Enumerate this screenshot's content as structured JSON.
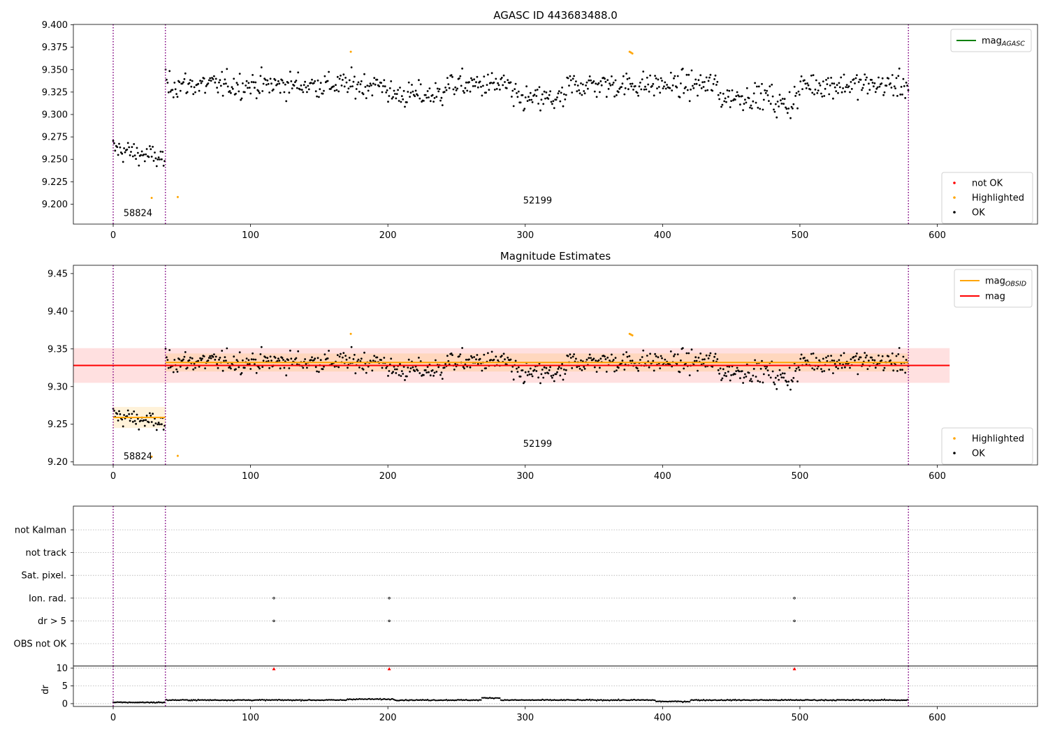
{
  "chart_data": [
    {
      "type": "scatter",
      "title": "AGASC ID 443683488.0",
      "xlabel": "",
      "ylabel": "",
      "xlim": [
        -29,
        673
      ],
      "ylim": [
        9.1778,
        9.4004
      ],
      "xticks": [
        0,
        100,
        200,
        300,
        400,
        500,
        600
      ],
      "yticks": [
        9.2,
        9.225,
        9.25,
        9.275,
        9.3,
        9.325,
        9.35,
        9.375,
        9.4
      ],
      "ytick_labels": [
        "9.200",
        "9.225",
        "9.250",
        "9.275",
        "9.300",
        "9.325",
        "9.350",
        "9.375",
        "9.400"
      ],
      "obs_boundaries": [
        0,
        38,
        579
      ],
      "obs_labels": [
        {
          "text": "58824",
          "x": 18,
          "y": 9.19
        },
        {
          "text": "52199",
          "x": 309,
          "y": 9.204
        }
      ],
      "highlighted_points": [
        {
          "x": 28,
          "y": 9.207
        },
        {
          "x": 47,
          "y": 9.208
        },
        {
          "x": 173,
          "y": 9.37
        },
        {
          "x": 376,
          "y": 9.37
        },
        {
          "x": 377,
          "y": 9.369
        },
        {
          "x": 378,
          "y": 9.368
        }
      ],
      "segments": [
        {
          "x0": 0,
          "x1": 38,
          "mean": 9.262,
          "sd": 0.011
        },
        {
          "x0": 38,
          "x1": 579,
          "mean": 9.333,
          "sd": 0.013
        }
      ],
      "legend_top": {
        "entries": [
          {
            "label": "mag",
            "sub": "AGASC",
            "color": "#008000"
          }
        ],
        "loc": "upper right"
      },
      "legend_bottom": {
        "entries": [
          {
            "label": "not OK",
            "color": "#ff0000"
          },
          {
            "label": "Highlighted",
            "color": "#ffa500"
          },
          {
            "label": "OK",
            "color": "#000000"
          }
        ],
        "loc": "lower right"
      }
    },
    {
      "type": "scatter",
      "title": "Magnitude Estimates",
      "xlabel": "",
      "ylabel": "",
      "xlim": [
        -29,
        673
      ],
      "ylim": [
        9.196,
        9.461
      ],
      "xticks": [
        0,
        100,
        200,
        300,
        400,
        500,
        600
      ],
      "yticks": [
        9.2,
        9.25,
        9.3,
        9.35,
        9.4,
        9.45
      ],
      "ytick_labels": [
        "9.20",
        "9.25",
        "9.30",
        "9.35",
        "9.40",
        "9.45"
      ],
      "obs_boundaries": [
        0,
        38,
        579
      ],
      "obs_labels": [
        {
          "text": "58824",
          "x": 18,
          "y": 9.207
        },
        {
          "text": "52199",
          "x": 309,
          "y": 9.224
        }
      ],
      "mag_line": {
        "value": 9.328,
        "band": [
          9.305,
          9.351
        ],
        "xrange": [
          -29,
          609
        ]
      },
      "obsid_segments": [
        {
          "x0": 0,
          "x1": 38,
          "mean": 9.259,
          "band": [
            9.245,
            9.273
          ]
        },
        {
          "x0": 38,
          "x1": 579,
          "mean": 9.332,
          "band": [
            9.32,
            9.344
          ]
        }
      ],
      "legend_top": {
        "entries": [
          {
            "label": "mag",
            "sub": "OBSID",
            "color": "#ffa500"
          },
          {
            "label": "mag",
            "sub": "",
            "color": "#ff0000"
          }
        ],
        "loc": "upper right"
      },
      "legend_bottom": {
        "entries": [
          {
            "label": "Highlighted",
            "color": "#ffa500"
          },
          {
            "label": "OK",
            "color": "#000000"
          }
        ],
        "loc": "lower right"
      }
    },
    {
      "type": "scatter",
      "title": "",
      "xlabel": "",
      "ylabel": "",
      "xlim": [
        -29,
        673
      ],
      "xticks": [
        0,
        100,
        200,
        300,
        400,
        500,
        600
      ],
      "obs_boundaries": [
        0,
        38,
        579
      ],
      "flag_categories": [
        "not Kalman",
        "not track",
        "Sat. pixel.",
        "Ion. rad.",
        "dr > 5",
        "OBS not OK"
      ],
      "flag_points": [
        {
          "category": "Ion. rad.",
          "x": [
            117,
            201,
            496
          ]
        },
        {
          "category": "dr > 5",
          "x": [
            117,
            201,
            496
          ]
        }
      ]
    },
    {
      "type": "scatter",
      "title": "",
      "xlabel": "",
      "ylabel": "dr",
      "xlim": [
        -29,
        673
      ],
      "ylim": [
        -0.8,
        10.6
      ],
      "xticks": [
        0,
        100,
        200,
        300,
        400,
        500,
        600
      ],
      "yticks": [
        0,
        5,
        10
      ],
      "ytick_labels": [
        "0",
        "5",
        "10"
      ],
      "obs_boundaries": [
        0,
        38,
        579
      ],
      "clipped_points": [
        {
          "x": 117,
          "y": 9.8
        },
        {
          "x": 201,
          "y": 9.8
        },
        {
          "x": 496,
          "y": 9.8
        }
      ]
    }
  ]
}
